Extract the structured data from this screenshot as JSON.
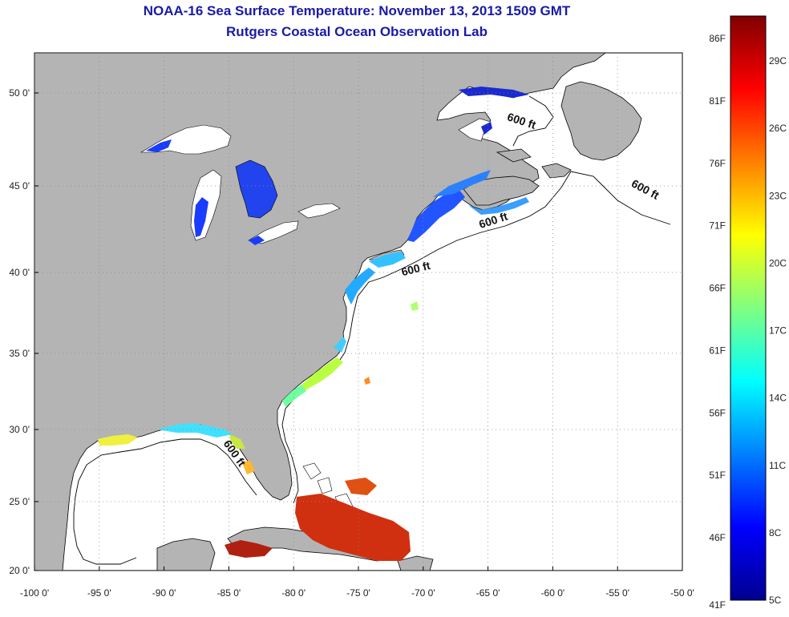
{
  "title": "NOAA-16 Sea Surface Temperature:  November 13, 2013 1509 GMT",
  "subtitle": "Rutgers Coastal Ocean Observation Lab",
  "map": {
    "lon_range": [
      -100,
      -50
    ],
    "lat_range": [
      20,
      52
    ],
    "lon_ticks": [
      "-100 0'",
      "-95 0'",
      "-90 0'",
      "-85 0'",
      "-80 0'",
      "-75 0'",
      "-70 0'",
      "-65 0'",
      "-60 0'",
      "-55 0'",
      "-50 0'"
    ],
    "lat_ticks": [
      "50 0'",
      "45 0'",
      "40 0'",
      "35 0'",
      "30 0'",
      "25 0'",
      "20 0'"
    ],
    "grid": "dotted",
    "land_color": "#b4b4b4",
    "ocean_color": "#ffffff",
    "contour_labels": [
      {
        "text": "600 ft",
        "lon": -62.5,
        "lat": 48.3
      },
      {
        "text": "600 ft",
        "lon": -53.0,
        "lat": 44.6
      },
      {
        "text": "600 ft",
        "lon": -64.5,
        "lat": 42.8
      },
      {
        "text": "600 ft",
        "lon": -70.5,
        "lat": 40.0
      },
      {
        "text": "600 ft",
        "lon": -84.8,
        "lat": 28.2
      }
    ]
  },
  "colorbar": {
    "fahrenheit_labels": [
      "86F",
      "81F",
      "76F",
      "71F",
      "66F",
      "61F",
      "56F",
      "51F",
      "46F",
      "41F"
    ],
    "celsius_labels": [
      "29C",
      "26C",
      "23C",
      "20C",
      "17C",
      "14C",
      "11C",
      "8C",
      "5C"
    ],
    "range_c": [
      5,
      31
    ],
    "colors": [
      "#00008f",
      "#0000ff",
      "#0080ff",
      "#00ffff",
      "#80ff80",
      "#ffff00",
      "#ff8000",
      "#ff0000",
      "#800000"
    ]
  }
}
